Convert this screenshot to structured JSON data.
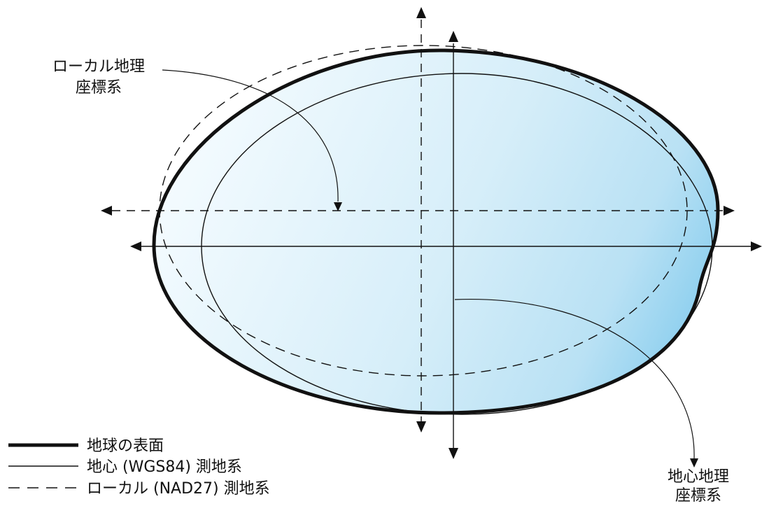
{
  "labels": {
    "local_coord_line1": "ローカル地理",
    "local_coord_line2": "座標系",
    "geocentric_coord_line1": "地心地理",
    "geocentric_coord_line2": "座標系"
  },
  "legend": [
    {
      "style": "thick-solid",
      "label": "地球の表面"
    },
    {
      "style": "thin-solid",
      "label": "地心 (WGS84) 測地系"
    },
    {
      "style": "dashed",
      "label": "ローカル (NAD27) 測地系"
    }
  ],
  "colors": {
    "fill_light": "#f4fbff",
    "fill_mid": "#d2ebf7",
    "fill_dark": "#9fd6f0",
    "ink": "#111111"
  }
}
